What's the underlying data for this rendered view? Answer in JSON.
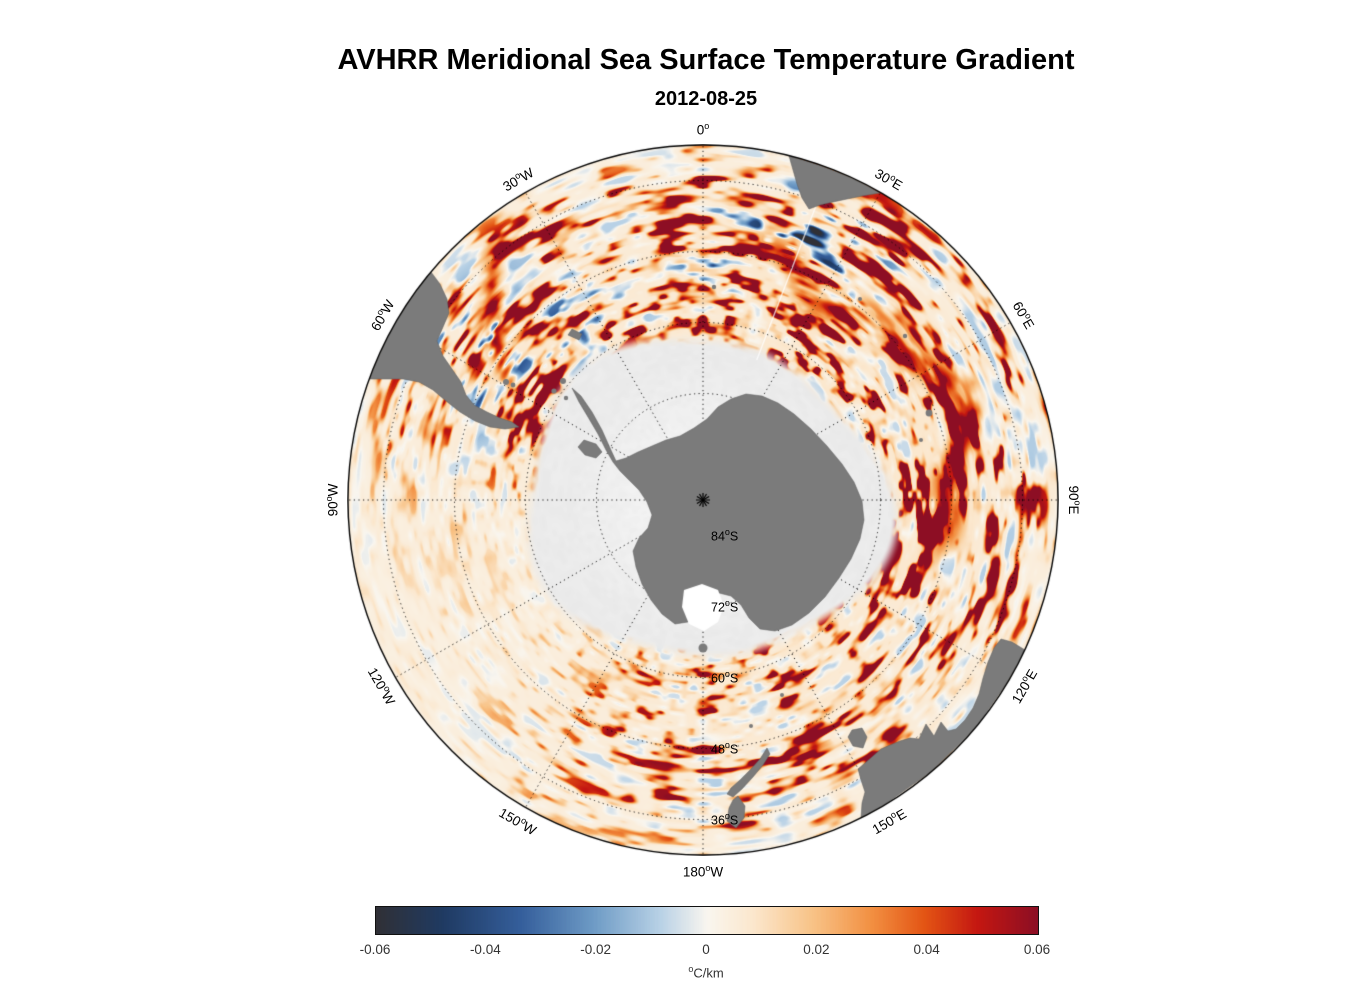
{
  "figure": {
    "title": "AVHRR Meridional Sea Surface Temperature Gradient",
    "date": "2012-08-25"
  },
  "map": {
    "projection": "South polar azimuthal (90S at center, 30S at outer edge)",
    "degree_mark": "o",
    "pole_marker": "*",
    "lon_labels": [
      {
        "deg": "0",
        "hem": "",
        "az": 0
      },
      {
        "deg": "30",
        "hem": "E",
        "az": 30
      },
      {
        "deg": "60",
        "hem": "E",
        "az": 60
      },
      {
        "deg": "90",
        "hem": "E",
        "az": 90
      },
      {
        "deg": "120",
        "hem": "E",
        "az": 120
      },
      {
        "deg": "150",
        "hem": "E",
        "az": 150
      },
      {
        "deg": "180",
        "hem": "W",
        "az": 180
      },
      {
        "deg": "150",
        "hem": "W",
        "az": -150
      },
      {
        "deg": "120",
        "hem": "W",
        "az": -120
      },
      {
        "deg": "90",
        "hem": "W",
        "az": -90
      },
      {
        "deg": "60",
        "hem": "W",
        "az": -60
      },
      {
        "deg": "30",
        "hem": "W",
        "az": -30
      }
    ],
    "lat_labels": [
      {
        "deg": "84",
        "hem": "S",
        "lat": 84
      },
      {
        "deg": "72",
        "hem": "S",
        "lat": 72
      },
      {
        "deg": "60",
        "hem": "S",
        "lat": 60
      },
      {
        "deg": "48",
        "hem": "S",
        "lat": 48
      },
      {
        "deg": "36",
        "hem": "S",
        "lat": 36
      }
    ],
    "grid": {
      "lon_step_deg": 30,
      "lat_step_deg": 12,
      "line_style": "dotted"
    },
    "colors": {
      "land": "#7b7b7b",
      "sea_ice": "#ebebeb",
      "ocean_base": "#faf0df",
      "grid_line": "#000000",
      "outline": "#000000",
      "background": "#ffffff"
    }
  },
  "colorbar": {
    "min": -0.06,
    "max": 0.06,
    "ticks": [
      "-0.06",
      "-0.04",
      "-0.02",
      "0",
      "0.02",
      "0.04",
      "0.06"
    ],
    "unit_sup": "o",
    "unit_text": "C/km",
    "stops": [
      {
        "t": 0.0,
        "color": "#303036"
      },
      {
        "t": 0.1,
        "color": "#1f3a62"
      },
      {
        "t": 0.22,
        "color": "#355f9c"
      },
      {
        "t": 0.33,
        "color": "#6f9cc6"
      },
      {
        "t": 0.43,
        "color": "#b9d2e6"
      },
      {
        "t": 0.5,
        "color": "#f9f6ef"
      },
      {
        "t": 0.57,
        "color": "#fbe7cd"
      },
      {
        "t": 0.66,
        "color": "#f8c387"
      },
      {
        "t": 0.75,
        "color": "#f28f41"
      },
      {
        "t": 0.83,
        "color": "#e35414"
      },
      {
        "t": 0.91,
        "color": "#c41711"
      },
      {
        "t": 1.0,
        "color": "#8c0e24"
      }
    ]
  },
  "chart_data": {
    "type": "heatmap",
    "title": "AVHRR Meridional Sea Surface Temperature Gradient",
    "subtitle": "2012-08-25",
    "field": "meridional sea surface temperature gradient",
    "value_unit": "°C/km",
    "value_range": [
      -0.06,
      0.06
    ],
    "colorbar_ticks": [
      -0.06,
      -0.04,
      -0.02,
      0,
      0.02,
      0.04,
      0.06
    ],
    "projection": "south polar azimuthal, South Pole at center, 30°S at outer edge",
    "lat_gridlines_S": [
      84,
      72,
      60,
      48,
      36
    ],
    "lon_gridlines": [
      "0",
      "30E",
      "60E",
      "90E",
      "120E",
      "150E",
      "180W",
      "150W",
      "120W",
      "90W",
      "60W",
      "30W"
    ],
    "legend_position": "bottom",
    "grid": true,
    "notes": "Strong positive (red) SST-gradient filaments ring Antarctica along the Antarctic Circumpolar Current, strongest in the Indian Ocean sector; negative (blue) patches near the Agulhas retroflection and Brazil-Malvinas confluence; gray land masses; light-gray sea-ice / no-data region around Antarctica."
  }
}
